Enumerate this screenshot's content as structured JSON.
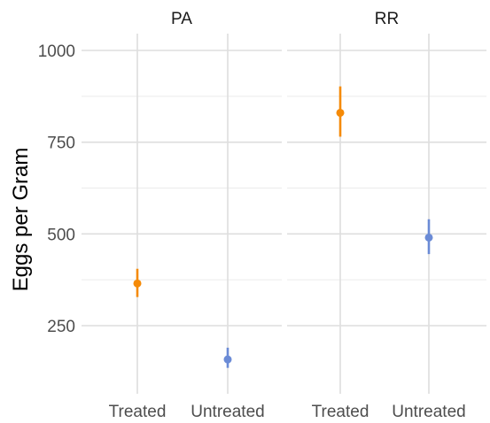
{
  "chart_data": {
    "type": "scatter",
    "subtype": "point-range, faceted",
    "ylabel": "Eggs per Gram",
    "xlabel": "",
    "categories": [
      "Treated",
      "Untreated"
    ],
    "y_ticks": [
      250,
      500,
      750,
      1000
    ],
    "ylim": [
      120,
      1050
    ],
    "grid": true,
    "legend": "none",
    "colors": {
      "Treated": "#f58a07",
      "Untreated": "#6b8bd6"
    },
    "facets": [
      {
        "label": "PA",
        "points": [
          {
            "x": "Treated",
            "y": 365,
            "ymin": 328,
            "ymax": 405
          },
          {
            "x": "Untreated",
            "y": 158,
            "ymin": 135,
            "ymax": 190
          }
        ]
      },
      {
        "label": "RR",
        "points": [
          {
            "x": "Treated",
            "y": 830,
            "ymin": 765,
            "ymax": 902
          },
          {
            "x": "Untreated",
            "y": 490,
            "ymin": 445,
            "ymax": 540
          }
        ]
      }
    ]
  }
}
